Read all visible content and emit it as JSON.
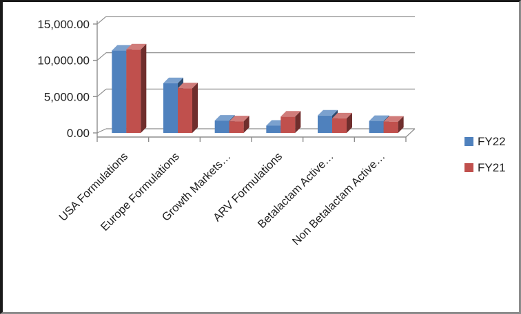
{
  "frame": {
    "background": "#ffffff",
    "border_dark": "#1a1a1a",
    "border_light": "#8c8c8c"
  },
  "chart_data": {
    "type": "bar",
    "style": "3d-clustered-column",
    "title": "",
    "categories": [
      "USA Formulations",
      "Europe Formulations",
      "Growth Markets…",
      "ARV Formulations",
      "Betalactam Active…",
      "Non Betalactam Active…"
    ],
    "series": [
      {
        "name": "FY22",
        "color": "#4F81BD",
        "values": [
          11350,
          6850,
          1700,
          1000,
          2400,
          1650
        ]
      },
      {
        "name": "FY21",
        "color": "#C0504D",
        "values": [
          11500,
          6150,
          1600,
          2250,
          2000,
          1550
        ]
      }
    ],
    "y_axis": {
      "min": 0,
      "max": 15000,
      "tick_interval": 5000,
      "ticks": [
        {
          "label": "0.00",
          "value": 0
        },
        {
          "label": "5,000.00",
          "value": 5000
        },
        {
          "label": "10,000.00",
          "value": 10000
        },
        {
          "label": "15,000.00",
          "value": 15000
        }
      ]
    },
    "legend": {
      "position": "right",
      "entries": [
        {
          "label": "FY22",
          "color": "#4F81BD"
        },
        {
          "label": "FY21",
          "color": "#C0504D"
        }
      ]
    },
    "gridlines": true,
    "grid_color": "#8d8d8d",
    "text_color": "#1f1f1f"
  }
}
